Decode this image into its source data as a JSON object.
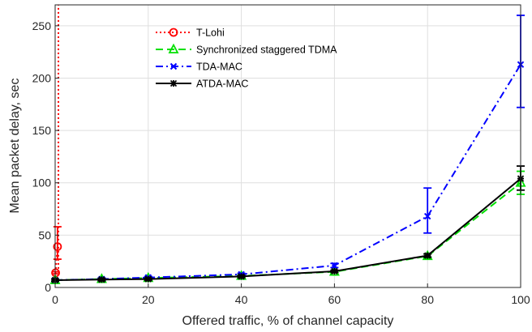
{
  "chart_data": {
    "type": "line",
    "title": "",
    "xlabel": "Offered traffic, % of channel capacity",
    "ylabel": "Mean packet delay, sec",
    "xlim": [
      0,
      100
    ],
    "ylim": [
      0,
      270
    ],
    "xticks": [
      0,
      20,
      40,
      60,
      80,
      100
    ],
    "yticks": [
      0,
      50,
      100,
      150,
      200,
      250
    ],
    "grid": true,
    "legend_position": "top-left",
    "series": [
      {
        "name": "T-Lohi",
        "color": "#ff0000",
        "line_style": "dotted",
        "marker": "circle",
        "x": [
          0.1,
          0.5
        ],
        "y": [
          14,
          39
        ],
        "err_low": [
          13,
          27
        ],
        "err_high": [
          15,
          58
        ],
        "vertical_to_top_at_x": 0.7
      },
      {
        "name": "Synchronized staggered TDMA",
        "color": "#00e000",
        "line_style": "dashed",
        "marker": "triangle",
        "x": [
          0,
          10,
          20,
          40,
          60,
          80,
          100
        ],
        "y": [
          7,
          8,
          9,
          11,
          15,
          30,
          100
        ],
        "err_low": [
          6,
          7,
          8,
          10,
          14,
          28,
          89
        ],
        "err_high": [
          8,
          9,
          10,
          12,
          16,
          32,
          111
        ]
      },
      {
        "name": "TDA-MAC",
        "color": "#0000ff",
        "line_style": "dashdot",
        "marker": "x",
        "x": [
          0,
          10,
          20,
          40,
          60,
          80,
          100
        ],
        "y": [
          7,
          8,
          9.5,
          12.5,
          21,
          68,
          213
        ],
        "err_low": [
          6,
          7,
          8.5,
          11.5,
          19,
          52,
          172
        ],
        "err_high": [
          8,
          9,
          10.5,
          13.5,
          23,
          95,
          260
        ]
      },
      {
        "name": "ATDA-MAC",
        "color": "#000000",
        "line_style": "solid",
        "marker": "asterisk",
        "x": [
          0,
          10,
          20,
          40,
          60,
          80,
          100
        ],
        "y": [
          7,
          7.5,
          8,
          10.5,
          15.5,
          30.5,
          104
        ],
        "err_low": [
          6,
          6.5,
          7,
          9.5,
          14.5,
          29,
          93
        ],
        "err_high": [
          8,
          8.5,
          9,
          11.5,
          16.5,
          32,
          116
        ]
      }
    ]
  }
}
